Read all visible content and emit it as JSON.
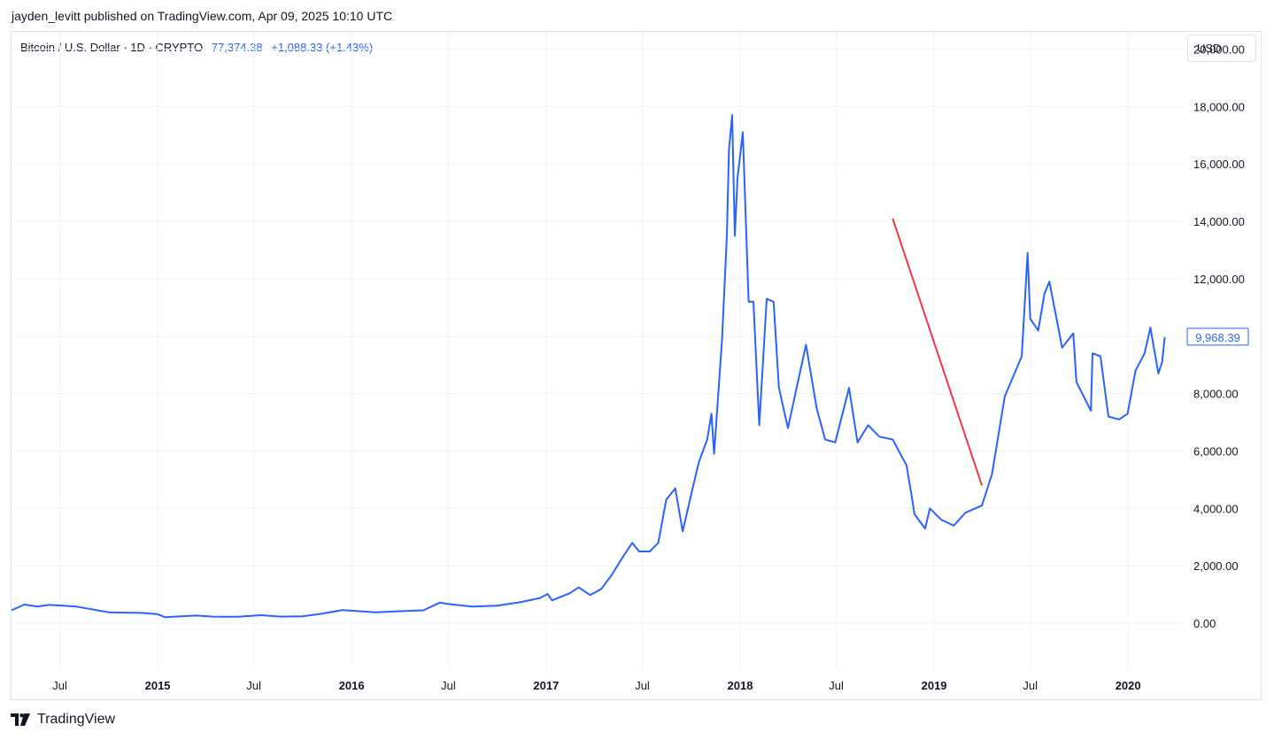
{
  "header": {
    "published": "jayden_levitt published on TradingView.com, Apr 09, 2025 10:10 UTC"
  },
  "legend": {
    "symbol": "Bitcoin / U.S. Dollar · 1D · CRYPTO",
    "price": "77,374.38",
    "change": "+1,088.33 (+1.43%)"
  },
  "currency_button": "USD",
  "brand": "TradingView",
  "colors": {
    "line": "#2962ff",
    "annotation": "#f23645",
    "grid": "#f0f3fa",
    "axis_text": "#131722"
  },
  "chart_data": {
    "type": "line",
    "title": "",
    "xlabel": "",
    "ylabel": "",
    "ylim": [
      -1600,
      20600
    ],
    "xlim": [
      "2014-04-01",
      "2020-04-08"
    ],
    "grid": true,
    "y_ticks": [
      0,
      2000,
      4000,
      6000,
      8000,
      10000,
      12000,
      14000,
      16000,
      18000,
      20000
    ],
    "y_tick_labels": [
      "0.00",
      "2,000.00",
      "4,000.00",
      "6,000.00",
      "8,000.00",
      "10,000.00",
      "12,000.00",
      "14,000.00",
      "16,000.00",
      "18,000.00",
      "20,000.00"
    ],
    "x_ticks": [
      {
        "date": "2014-07-01",
        "label": "Jul",
        "bold": false
      },
      {
        "date": "2015-01-01",
        "label": "2015",
        "bold": true
      },
      {
        "date": "2015-07-01",
        "label": "Jul",
        "bold": false
      },
      {
        "date": "2016-01-01",
        "label": "2016",
        "bold": true
      },
      {
        "date": "2016-07-01",
        "label": "Jul",
        "bold": false
      },
      {
        "date": "2017-01-01",
        "label": "2017",
        "bold": true
      },
      {
        "date": "2017-07-01",
        "label": "Jul",
        "bold": false
      },
      {
        "date": "2018-01-01",
        "label": "2018",
        "bold": true
      },
      {
        "date": "2018-07-01",
        "label": "Jul",
        "bold": false
      },
      {
        "date": "2019-01-01",
        "label": "2019",
        "bold": true
      },
      {
        "date": "2019-07-01",
        "label": "Jul",
        "bold": false
      },
      {
        "date": "2020-01-01",
        "label": "2020",
        "bold": true
      }
    ],
    "last_value_label": "9,968.39",
    "series": [
      {
        "x": [
          "2014-04-01",
          "2014-04-25",
          "2014-05-20",
          "2014-06-10",
          "2014-07-01",
          "2014-08-01",
          "2014-09-01",
          "2014-10-01",
          "2014-11-01",
          "2014-12-01",
          "2015-01-01",
          "2015-01-15",
          "2015-02-15",
          "2015-03-15",
          "2015-04-15",
          "2015-06-01",
          "2015-07-15",
          "2015-08-20",
          "2015-10-01",
          "2015-11-05",
          "2015-12-15",
          "2016-01-15",
          "2016-02-15",
          "2016-04-01",
          "2016-05-15",
          "2016-06-15",
          "2016-07-01",
          "2016-08-15",
          "2016-10-01",
          "2016-11-15",
          "2016-12-20",
          "2017-01-04",
          "2017-01-12",
          "2017-02-15",
          "2017-03-03",
          "2017-03-25",
          "2017-04-15",
          "2017-05-05",
          "2017-05-25",
          "2017-06-12",
          "2017-06-25",
          "2017-07-15",
          "2017-07-31",
          "2017-08-15",
          "2017-09-01",
          "2017-09-15",
          "2017-09-30",
          "2017-10-15",
          "2017-10-31",
          "2017-11-08",
          "2017-11-13",
          "2017-11-28",
          "2017-12-07",
          "2017-12-11",
          "2017-12-17",
          "2017-12-22",
          "2017-12-27",
          "2018-01-06",
          "2018-01-17",
          "2018-01-26",
          "2018-02-06",
          "2018-02-20",
          "2018-03-05",
          "2018-03-15",
          "2018-04-01",
          "2018-04-15",
          "2018-05-05",
          "2018-05-25",
          "2018-06-10",
          "2018-06-29",
          "2018-07-25",
          "2018-08-10",
          "2018-08-30",
          "2018-09-20",
          "2018-10-15",
          "2018-11-10",
          "2018-11-20",
          "2018-11-25",
          "2018-12-15",
          "2018-12-24",
          "2019-01-15",
          "2019-02-07",
          "2019-03-01",
          "2019-04-01",
          "2019-04-20",
          "2019-05-14",
          "2019-05-30",
          "2019-06-15",
          "2019-06-26",
          "2019-07-01",
          "2019-07-16",
          "2019-07-28",
          "2019-08-06",
          "2019-08-30",
          "2019-09-20",
          "2019-09-26",
          "2019-10-23",
          "2019-10-26",
          "2019-11-10",
          "2019-11-25",
          "2019-12-15",
          "2019-12-31",
          "2020-01-15",
          "2020-02-01",
          "2020-02-12",
          "2020-02-27",
          "2020-03-05",
          "2020-03-10"
        ],
        "y": [
          450,
          650,
          580,
          640,
          620,
          580,
          480,
          380,
          370,
          360,
          315,
          210,
          240,
          270,
          230,
          225,
          280,
          230,
          245,
          330,
          460,
          420,
          380,
          420,
          450,
          720,
          670,
          580,
          610,
          740,
          880,
          1020,
          800,
          1050,
          1250,
          980,
          1200,
          1700,
          2300,
          2800,
          2500,
          2500,
          2800,
          4300,
          4700,
          3200,
          4400,
          5600,
          6400,
          7300,
          5900,
          9900,
          13500,
          16500,
          17700,
          13500,
          15500,
          17100,
          11200,
          11200,
          6900,
          11300,
          11200,
          8200,
          6800,
          8000,
          9700,
          7500,
          6400,
          6300,
          8200,
          6300,
          6900,
          6500,
          6400,
          5500,
          4400,
          3800,
          3300,
          4000,
          3600,
          3400,
          3850,
          4100,
          5200,
          7900,
          8600,
          9300,
          12900,
          10600,
          10200,
          11500,
          11900,
          9600,
          10100,
          8400,
          7400,
          9400,
          9300,
          7200,
          7100,
          7300,
          8800,
          9400,
          10300,
          8700,
          9100,
          9968
        ]
      }
    ],
    "annotation": {
      "type": "trend-line",
      "from": {
        "date": "2018-10-15",
        "value": 14100
      },
      "to": {
        "date": "2019-04-01",
        "value": 4800
      }
    }
  }
}
